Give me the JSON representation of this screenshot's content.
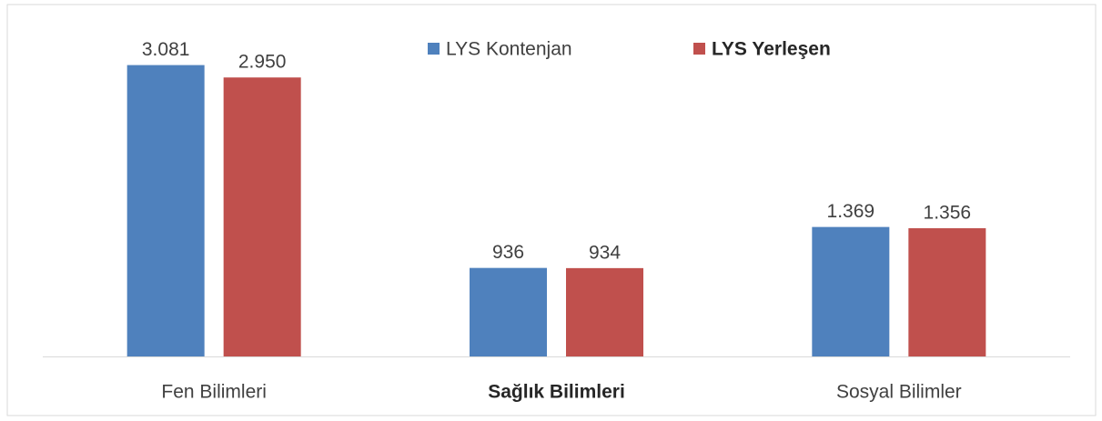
{
  "chart_data": {
    "type": "bar",
    "categories": [
      "Fen Bilimleri",
      "Sağlık Bilimleri",
      "Sosyal Bilimler"
    ],
    "series": [
      {
        "name": "LYS Kontenjan",
        "color": "#4f81bd",
        "values": [
          3081,
          936,
          1369
        ],
        "value_labels": [
          "3.081",
          "936",
          "1.369"
        ]
      },
      {
        "name": "LYS Yerleşen",
        "color": "#c0504d",
        "values": [
          2950,
          934,
          1356
        ],
        "value_labels": [
          "2.950",
          "934",
          "1.356"
        ]
      }
    ],
    "ylim": [
      0,
      3500
    ],
    "grid": false,
    "legend": "top"
  }
}
